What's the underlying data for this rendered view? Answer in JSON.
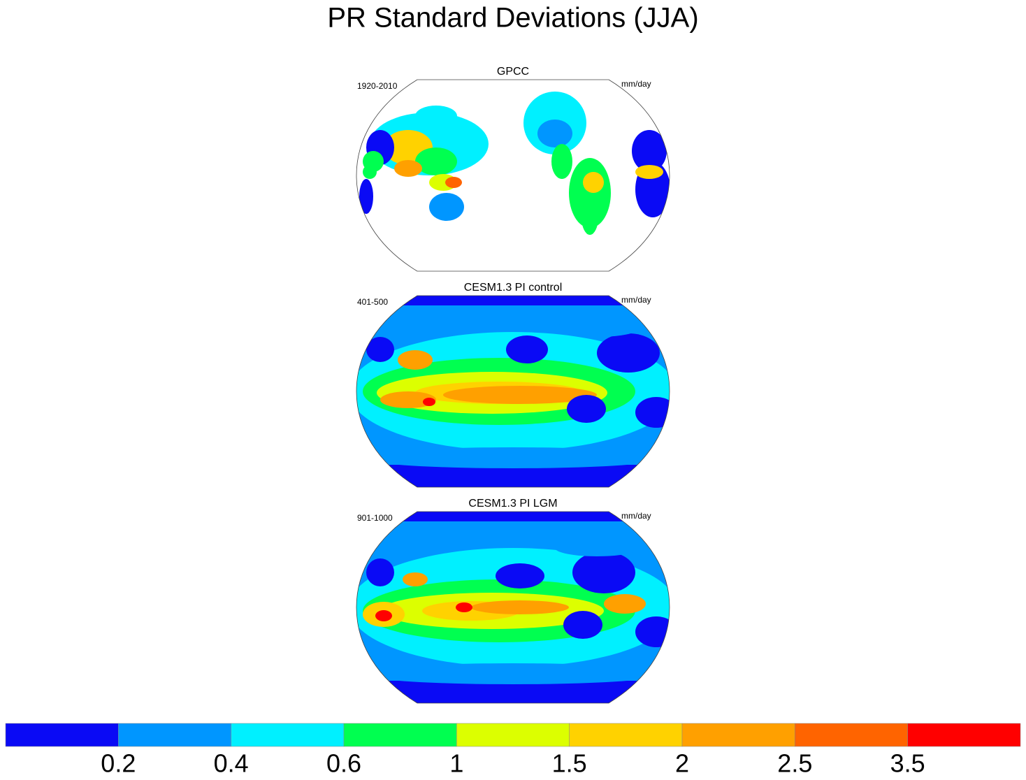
{
  "title": "PR Standard Deviations (JJA)",
  "panels": [
    {
      "title": "GPCC",
      "period": "1920-2010",
      "units": "mm/day"
    },
    {
      "title": "CESM1.3 PI control",
      "period": "401-500",
      "units": "mm/day"
    },
    {
      "title": "CESM1.3 PI LGM",
      "period": "901-1000",
      "units": "mm/day"
    }
  ],
  "colorbar": {
    "levels": [
      0.2,
      0.4,
      0.6,
      1,
      1.5,
      2,
      2.5,
      3.5
    ],
    "colors": [
      "#0a0af5",
      "#0096ff",
      "#00f0ff",
      "#00ff50",
      "#dcff00",
      "#ffd200",
      "#ffa000",
      "#ff6400",
      "#ff0000"
    ]
  }
}
